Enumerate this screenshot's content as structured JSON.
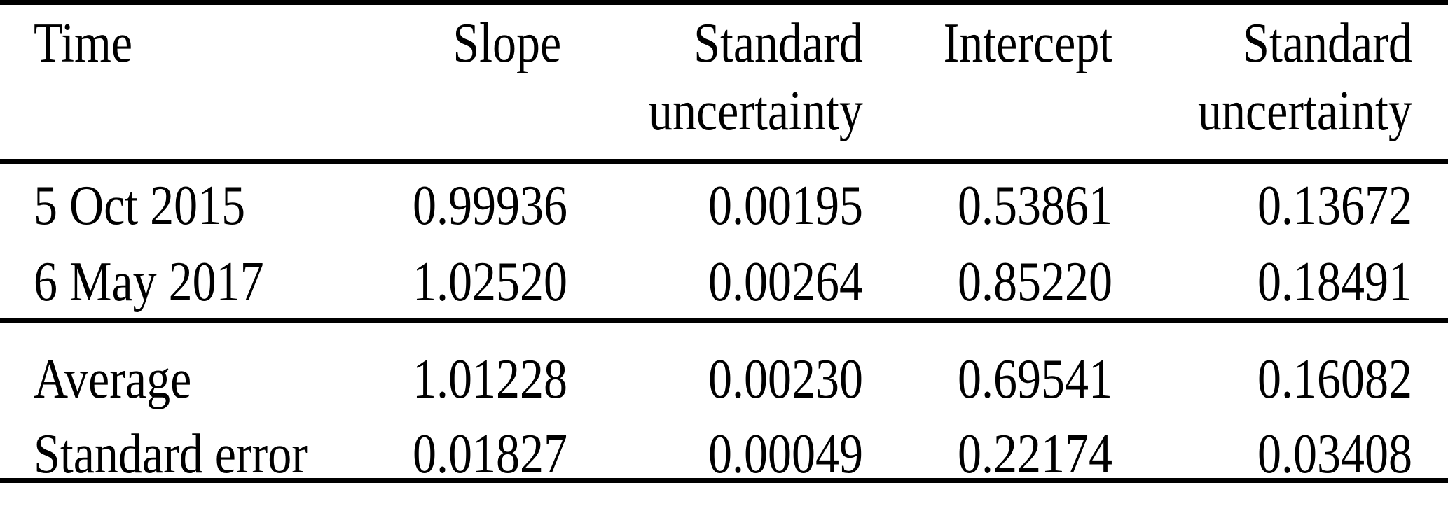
{
  "header": {
    "time": "Time",
    "slope": "Slope",
    "slope_uncertainty_line1": "Standard",
    "slope_uncertainty_line2": "uncertainty",
    "intercept": "Intercept",
    "intercept_uncertainty_line1": "Standard",
    "intercept_uncertainty_line2": "uncertainty"
  },
  "rows": [
    {
      "time": "5 Oct 2015",
      "slope": "0.99936",
      "slope_uncertainty": "0.00195",
      "intercept": "0.53861",
      "intercept_uncertainty": "0.13672"
    },
    {
      "time": "6 May 2017",
      "slope": "1.02520",
      "slope_uncertainty": "0.00264",
      "intercept": "0.85220",
      "intercept_uncertainty": "0.18491"
    }
  ],
  "summary_rows": [
    {
      "time": "Average",
      "slope": "1.01228",
      "slope_uncertainty": "0.00230",
      "intercept": "0.69541",
      "intercept_uncertainty": "0.16082"
    },
    {
      "time": "Standard error",
      "slope": "0.01827",
      "slope_uncertainty": "0.00049",
      "intercept": "0.22174",
      "intercept_uncertainty": "0.03408"
    }
  ],
  "colors": {
    "text": "#000000",
    "rule": "#000000",
    "background": "#ffffff"
  }
}
